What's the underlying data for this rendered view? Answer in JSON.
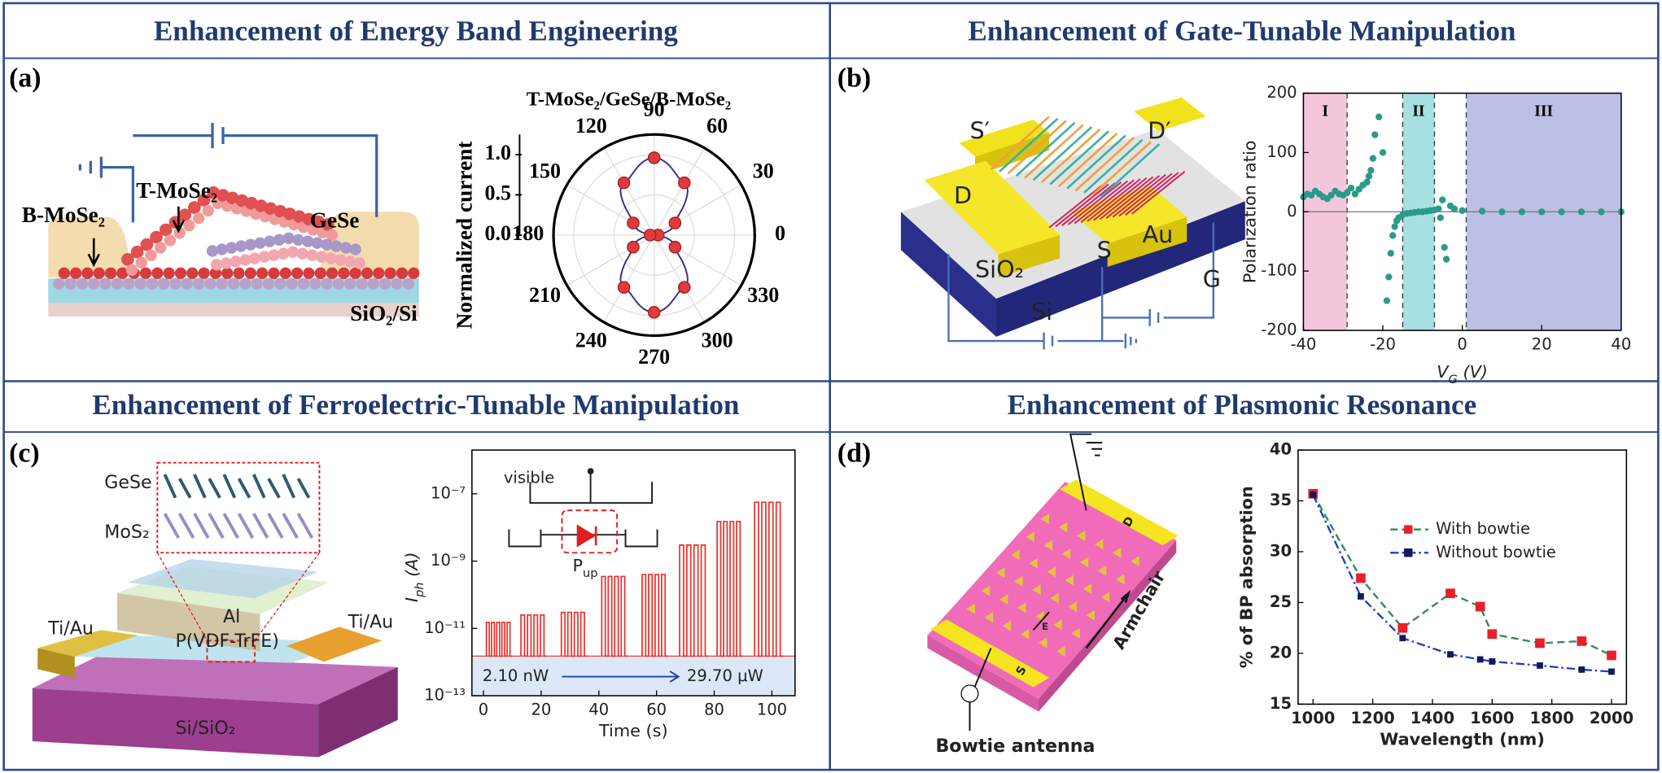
{
  "panels": [
    {
      "title": "Enhancement of Energy Band Engineering",
      "label": "(a)",
      "diagram_labels": [
        "B-MoSe₂",
        "T-MoSe₂",
        "GeSe",
        "SiO₂/Si"
      ],
      "chart": {
        "type": "polar",
        "title": "T-MoSe₂/GeSe/B-MoSe₂",
        "ylabel": "Normalized current",
        "angles": [
          0,
          30,
          60,
          90,
          120,
          150,
          180,
          210,
          240,
          270,
          300,
          330
        ],
        "values": [
          0.05,
          0.3,
          0.75,
          0.96,
          0.75,
          0.3,
          0.05,
          0.3,
          0.75,
          0.96,
          0.75,
          0.3
        ],
        "rlim": [
          0,
          1.25
        ],
        "rticks": [
          {
            "value": 0,
            "label": "0.0"
          },
          {
            "value": 0.5,
            "label": "0.5"
          },
          {
            "value": 1,
            "label": "1.0"
          }
        ],
        "angle_ticks": [
          0,
          30,
          60,
          90,
          120,
          150,
          180,
          210,
          240,
          270,
          300,
          330
        ],
        "point_color": "#e03a3a",
        "line_color": "#3a2e8a"
      }
    },
    {
      "title": "Enhancement of Gate-Tunable Manipulation",
      "label": "(b)",
      "diagram_labels": [
        "S′",
        "D′",
        "D",
        "S",
        "Au",
        "SiO₂",
        "Si",
        "G"
      ],
      "chart": {
        "type": "scatter",
        "xlabel": [
          "V",
          "G",
          " (V)"
        ],
        "ylabel": "Polarization ratio",
        "x": [
          -40,
          -39,
          -38,
          -37,
          -36,
          -35,
          -34,
          -33,
          -32,
          -31,
          -30,
          -29,
          -28,
          -27,
          -26,
          -25,
          -24,
          -23.5,
          -23,
          -22.5,
          -22,
          -21,
          -20,
          -19,
          -18.5,
          -18,
          -17.5,
          -17,
          -16.5,
          -16,
          -15,
          -14,
          -13,
          -12,
          -11,
          -10,
          -9,
          -8,
          -7,
          -6,
          -5.5,
          -5,
          -4.5,
          -4,
          -3,
          -2,
          0,
          5,
          10,
          15,
          20,
          25,
          30,
          35,
          40
        ],
        "y": [
          25,
          30,
          28,
          35,
          30,
          25,
          22,
          28,
          35,
          30,
          28,
          32,
          40,
          30,
          38,
          45,
          50,
          60,
          70,
          90,
          130,
          160,
          100,
          -150,
          -110,
          -70,
          -40,
          -25,
          -15,
          -10,
          -5,
          -3,
          -2,
          -1,
          0,
          0,
          1,
          2,
          3,
          5,
          -10,
          20,
          -60,
          -80,
          10,
          5,
          2,
          1,
          0,
          0,
          0,
          0,
          0,
          0,
          0
        ],
        "color": "#2a9a8a",
        "regions": [
          {
            "label": "I",
            "x": [
              -40,
              -29
            ],
            "color": "#f4c6dc"
          },
          {
            "label": "II",
            "x": [
              -15,
              -7
            ],
            "color": "#a6e0e0"
          },
          {
            "label": "III",
            "x": [
              1,
              40
            ],
            "color": "#bcc0e4"
          }
        ],
        "xlim": [
          -40,
          40
        ],
        "xticks": [
          -40,
          -20,
          0,
          20,
          40
        ],
        "ylim": [
          -200,
          200
        ],
        "yticks": [
          -200,
          -100,
          0,
          100,
          200
        ]
      }
    },
    {
      "title": "Enhancement of Ferroelectric-Tunable Manipulation",
      "label": "(c)",
      "diagram_labels": [
        "GeSe",
        "MoS₂",
        "Al",
        "P(VDF-TrFE)",
        "Ti/Au",
        "Ti/Au",
        "Si/SiO₂"
      ],
      "chart": {
        "type": "pulses",
        "xlabel": "Time (s)",
        "ylabel": [
          "I",
          "ph",
          " (A)"
        ],
        "log_y": true,
        "baseline": 1.5e-12,
        "trains": [
          {
            "start": 1,
            "end": 10,
            "peak": 1.5e-11,
            "pulses": 5
          },
          {
            "start": 13,
            "end": 22,
            "peak": 2.5e-11,
            "pulses": 4
          },
          {
            "start": 27,
            "end": 36,
            "peak": 3e-11,
            "pulses": 4
          },
          {
            "start": 41,
            "end": 50,
            "peak": 3.5e-10,
            "pulses": 4
          },
          {
            "start": 55,
            "end": 64,
            "peak": 4e-10,
            "pulses": 4
          },
          {
            "start": 68,
            "end": 78,
            "peak": 3e-09,
            "pulses": 4
          },
          {
            "start": 81,
            "end": 90,
            "peak": 1.5e-08,
            "pulses": 4
          },
          {
            "start": 94,
            "end": 104,
            "peak": 5.6e-08,
            "pulses": 4
          }
        ],
        "color": "#e8302a",
        "annotations": [
          "visible",
          "2.10 nW",
          "29.70 μW"
        ],
        "inset_label": [
          "P",
          "up"
        ],
        "xlim": [
          -4,
          108
        ],
        "xticks": [
          0,
          20,
          40,
          60,
          80,
          100
        ],
        "ylim": [
          1e-13,
          2e-06
        ],
        "yticks": [
          {
            "value": 1e-13,
            "label": "10⁻¹³"
          },
          {
            "value": 1e-11,
            "label": "10⁻¹¹"
          },
          {
            "value": 1e-09,
            "label": "10⁻⁹"
          },
          {
            "value": 1e-07,
            "label": "10⁻⁷"
          }
        ]
      }
    },
    {
      "title": "Enhancement of  Plasmonic Resonance",
      "label": "(d)",
      "diagram_labels": [
        "D",
        "S",
        "E",
        "Armchair",
        "Bowtie antenna"
      ],
      "chart": {
        "type": "line",
        "xlabel": "Wavelength (nm)",
        "ylabel": "% of BP absorption",
        "x": [
          1000,
          1160,
          1300,
          1460,
          1560,
          1600,
          1760,
          1900,
          2000
        ],
        "series": [
          {
            "name": "With bowtie",
            "color": "#e8202a",
            "line_color": "#2e8b57",
            "values": [
              35.7,
              27.4,
              22.5,
              25.9,
              24.6,
              21.9,
              21.0,
              21.2,
              19.8
            ]
          },
          {
            "name": "Without bowtie",
            "color": "#111a5e",
            "line_color": "#2040c0",
            "values": [
              35.6,
              25.6,
              21.5,
              19.9,
              19.4,
              19.2,
              18.8,
              18.4,
              18.2
            ]
          }
        ],
        "xlim": [
          950,
          2050
        ],
        "xticks": [
          1000,
          1200,
          1400,
          1600,
          1800,
          2000
        ],
        "ylim": [
          15,
          40
        ],
        "yticks": [
          15,
          20,
          25,
          30,
          35,
          40
        ]
      }
    }
  ]
}
